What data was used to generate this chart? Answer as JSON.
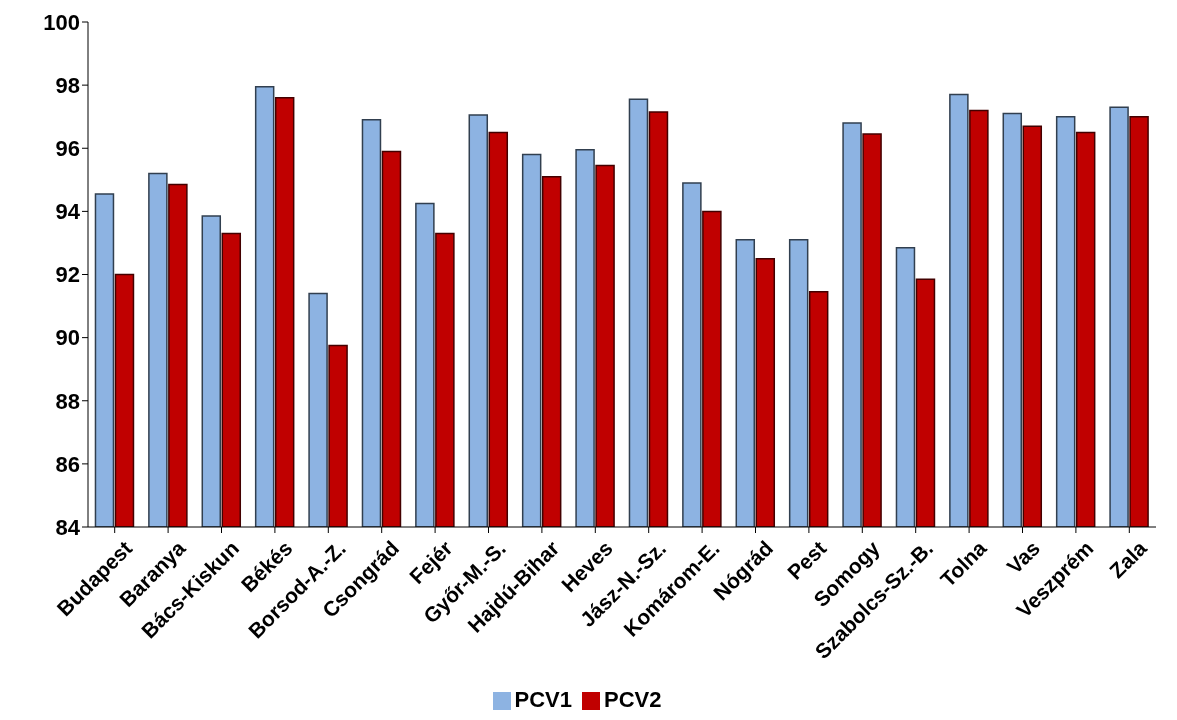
{
  "chart_data": {
    "type": "bar",
    "categories": [
      "Budapest",
      "Baranya",
      "Bács-Kiskun",
      "Békés",
      "Borsod-A.-Z.",
      "Csongrád",
      "Fejér",
      "Győr-M.-S.",
      "Hajdú-Bihar",
      "Heves",
      "Jász-N.-Sz.",
      "Komárom-E.",
      "Nógrád",
      "Pest",
      "Somogy",
      "Szabolcs-Sz.-B.",
      "Tolna",
      "Vas",
      "Veszprém",
      "Zala"
    ],
    "series": [
      {
        "name": "PCV1",
        "color": "#8db3e2",
        "values": [
          94.55,
          95.2,
          93.85,
          97.95,
          91.4,
          96.9,
          94.25,
          97.05,
          95.8,
          95.95,
          97.55,
          94.9,
          93.1,
          93.1,
          96.8,
          92.85,
          97.7,
          97.1,
          97.0,
          97.3
        ]
      },
      {
        "name": "PCV2",
        "color": "#c00000",
        "values": [
          92.0,
          94.85,
          93.3,
          97.6,
          89.75,
          95.9,
          93.3,
          96.5,
          95.1,
          95.45,
          97.15,
          94.0,
          92.5,
          91.45,
          96.45,
          91.85,
          97.2,
          96.7,
          96.5,
          97.0
        ]
      }
    ],
    "ylim": [
      84,
      100
    ],
    "yticks": [
      84,
      86,
      88,
      90,
      92,
      94,
      96,
      98,
      100
    ],
    "grid": false,
    "legend": "bottom"
  }
}
